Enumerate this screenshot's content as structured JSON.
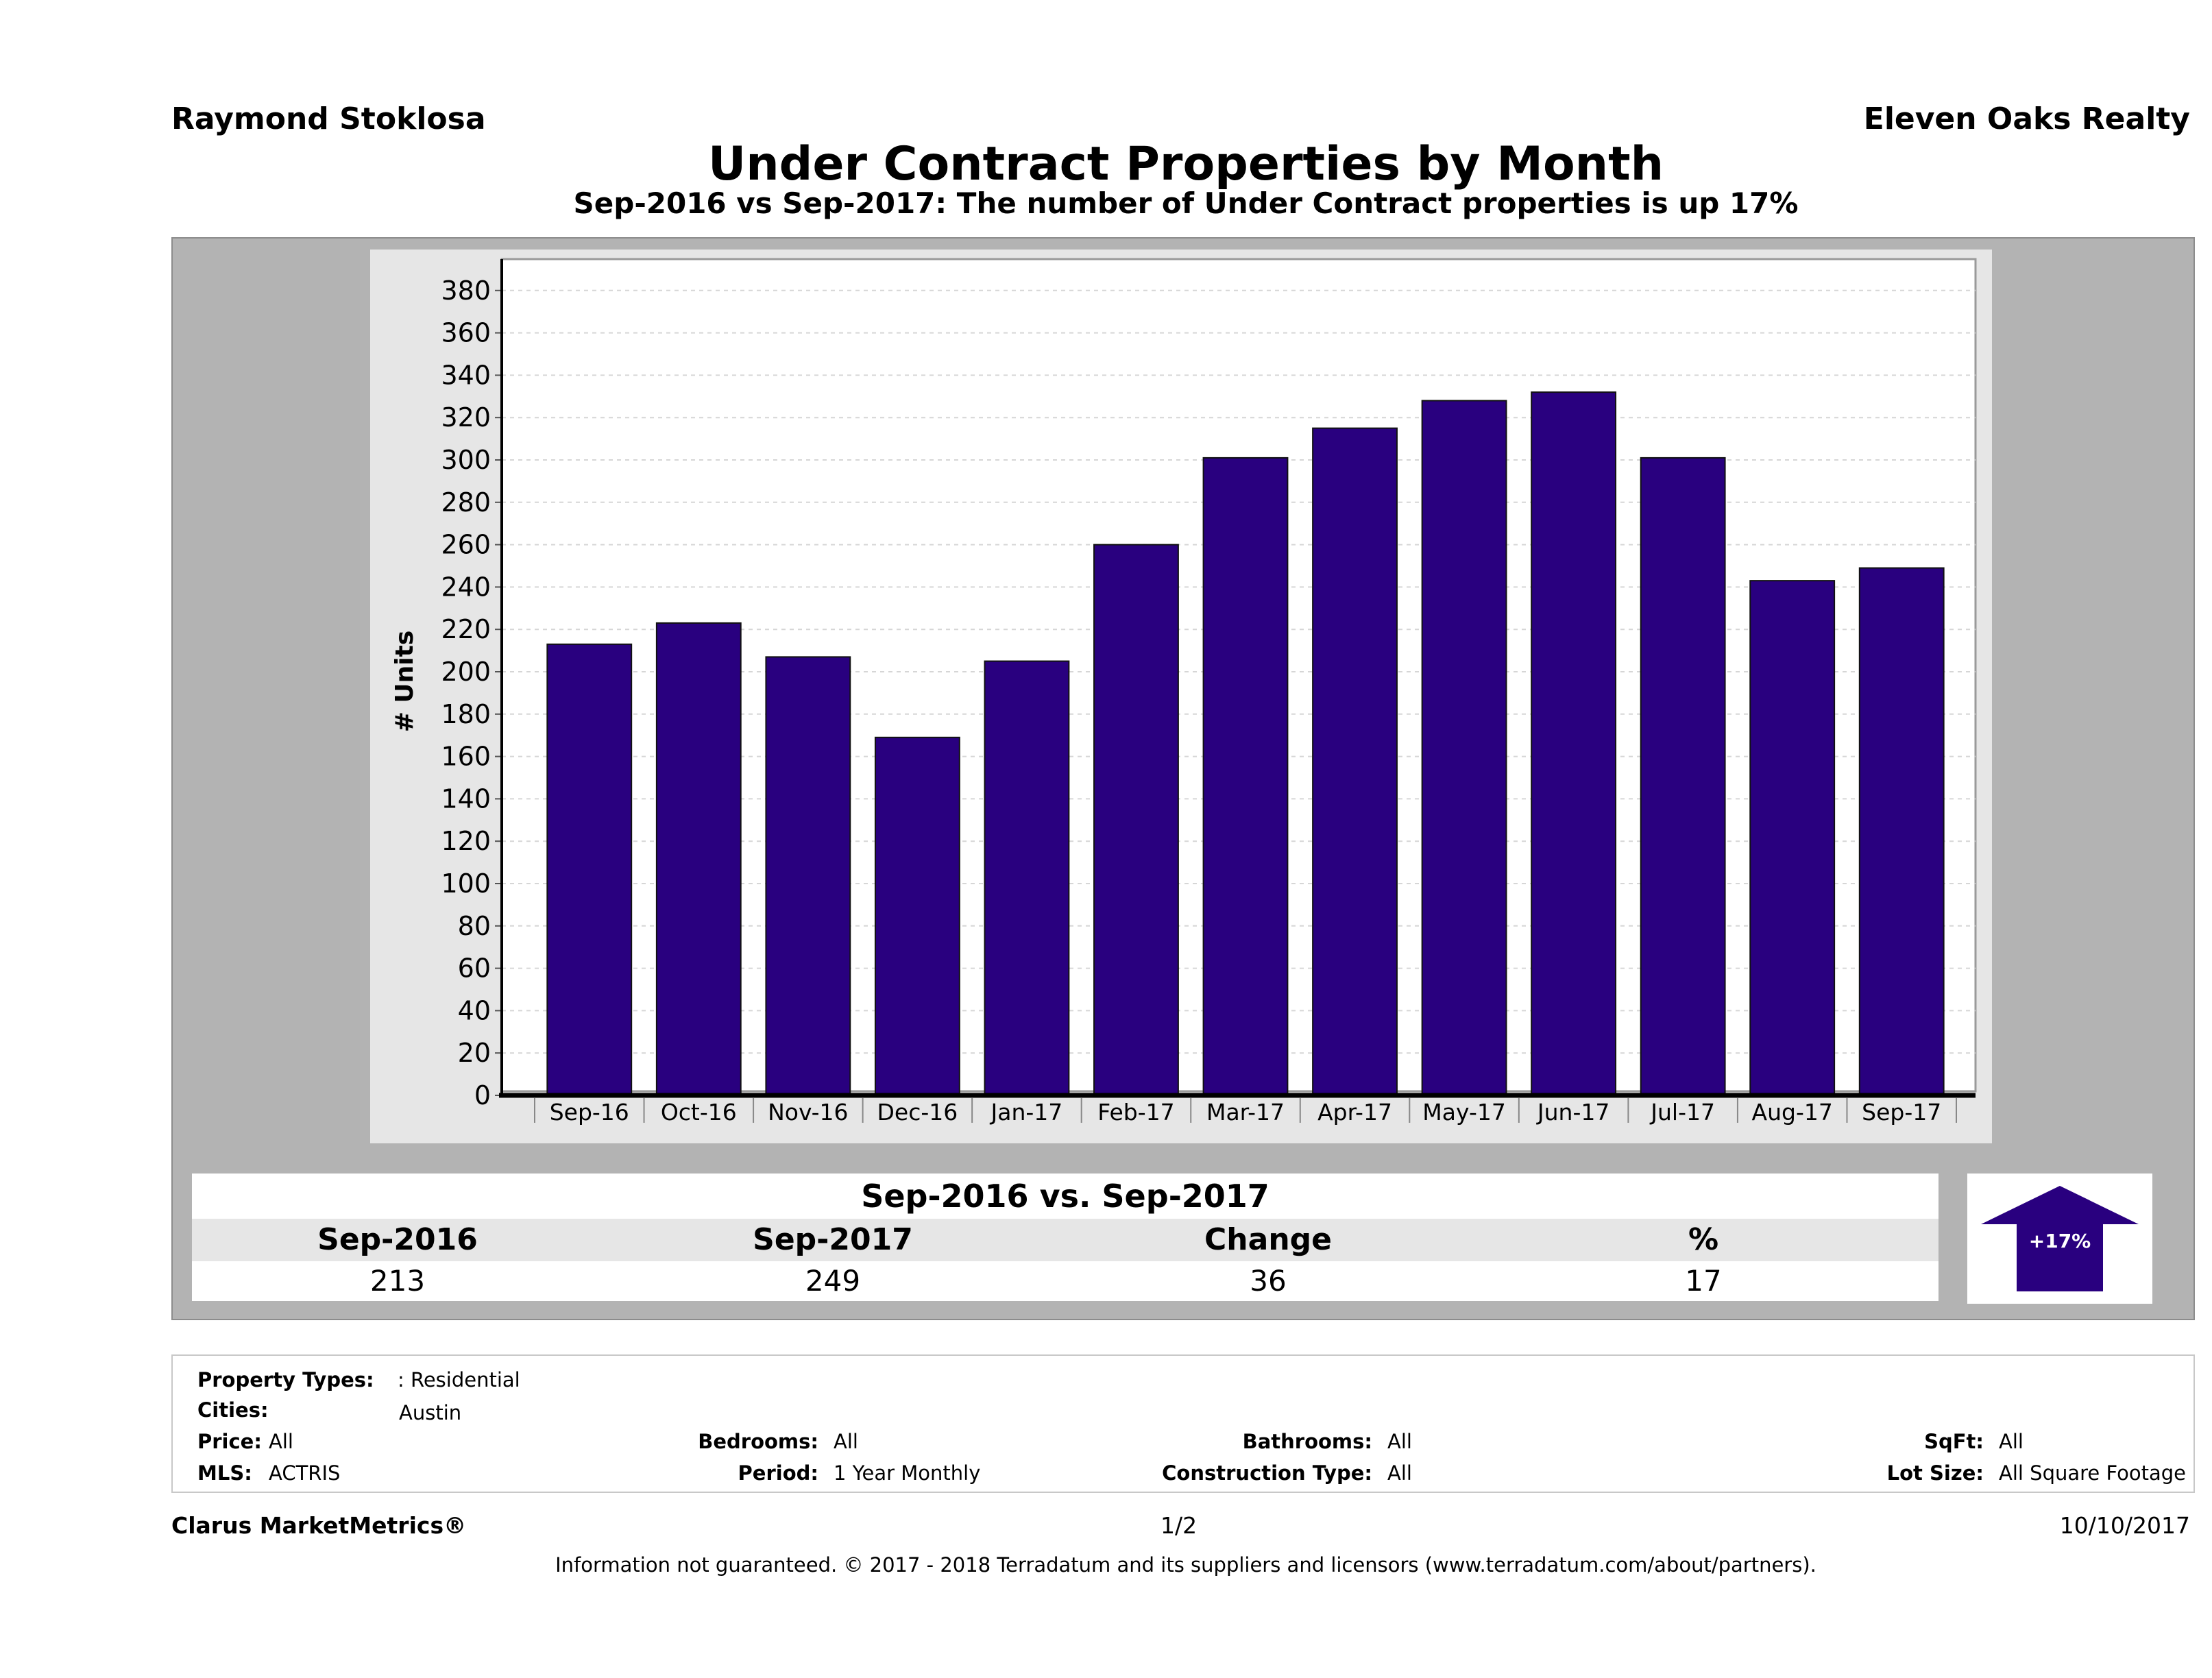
{
  "header": {
    "agent": "Raymond Stoklosa",
    "brokerage": "Eleven Oaks Realty",
    "title": "Under Contract Properties by Month",
    "subtitle": "Sep-2016 vs Sep-2017: The number of Under Contract  properties is up 17%"
  },
  "chart_data": {
    "type": "bar",
    "categories": [
      "Sep-16",
      "Oct-16",
      "Nov-16",
      "Dec-16",
      "Jan-17",
      "Feb-17",
      "Mar-17",
      "Apr-17",
      "May-17",
      "Jun-17",
      "Jul-17",
      "Aug-17",
      "Sep-17"
    ],
    "values": [
      213,
      223,
      207,
      169,
      205,
      260,
      301,
      315,
      328,
      332,
      301,
      243,
      249
    ],
    "ylabel": "# Units",
    "xlabel": "",
    "ylim": [
      0,
      390
    ],
    "yticks": [
      0,
      20,
      40,
      60,
      80,
      100,
      120,
      140,
      160,
      180,
      200,
      220,
      240,
      260,
      280,
      300,
      320,
      340,
      360,
      380
    ],
    "grid": true,
    "bar_color": "#29007f"
  },
  "comparison": {
    "heading": "Sep-2016 vs. Sep-2017",
    "columns": [
      "Sep-2016",
      "Sep-2017",
      "Change",
      "%"
    ],
    "values": [
      "213",
      "249",
      "36",
      "17"
    ],
    "badge": "+17%",
    "badge_color": "#29007f"
  },
  "params": {
    "property_types_label": "Property Types:",
    "property_types_value": ": Residential",
    "cities_label": "Cities:",
    "cities_value": "Austin",
    "price_label": "Price:",
    "price_value": "All",
    "bedrooms_label": "Bedrooms:",
    "bedrooms_value": "All",
    "bathrooms_label": "Bathrooms:",
    "bathrooms_value": "All",
    "sqft_label": "SqFt:",
    "sqft_value": "All",
    "mls_label": "MLS:",
    "mls_value": "ACTRIS",
    "period_label": "Period:",
    "period_value": "1 Year Monthly",
    "construction_label": "Construction Type:",
    "construction_value": "All",
    "lot_label": "Lot Size:",
    "lot_value": "All Square Footage"
  },
  "footer": {
    "product": "Clarus MarketMetrics®",
    "page": "1/2",
    "date": "10/10/2017",
    "disclaimer": "Information not guaranteed. © 2017 - 2018 Terradatum and its suppliers and licensors (www.terradatum.com/about/partners)."
  }
}
